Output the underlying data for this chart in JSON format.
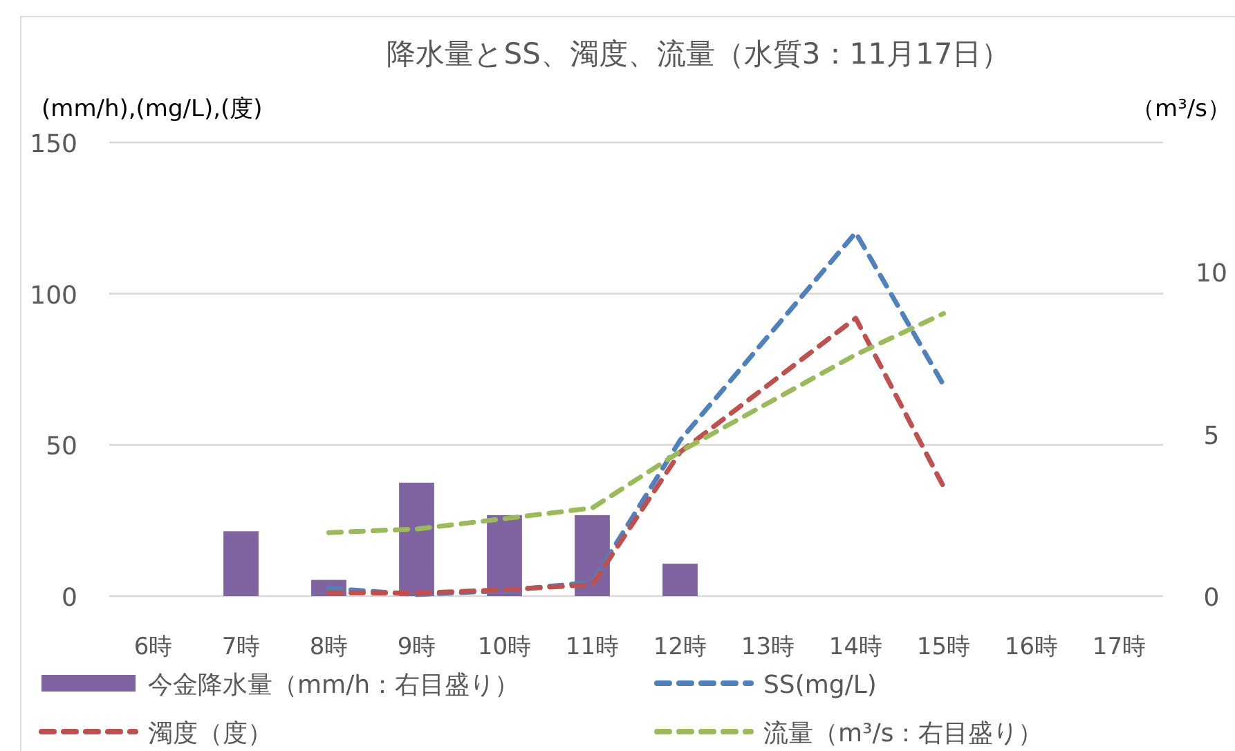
{
  "chart_data": {
    "type": "line",
    "title": "降水量とSS、濁度、流量（水質3：11月17日）",
    "ylabel": "(mm/h),(mg/L),(度)",
    "y2label": "（m³/s）",
    "categories": [
      "6時",
      "7時",
      "8時",
      "9時",
      "10時",
      "11時",
      "12時",
      "13時",
      "14時",
      "15時",
      "16時",
      "17時"
    ],
    "series": [
      {
        "name": "今金降水量（mm/h：右目盛り）",
        "type": "bar",
        "axis": "y2",
        "color": "#8064a2",
        "values": [
          null,
          2.0,
          0.5,
          3.5,
          2.5,
          2.5,
          1.0,
          null,
          null,
          null,
          null,
          null
        ]
      },
      {
        "name": "SS(mg/L)",
        "color": "#4f81bd",
        "line_style": "dashed",
        "values": [
          null,
          null,
          2.6,
          0.5,
          1.8,
          4.6,
          51.5,
          null,
          120.2,
          69.8,
          null,
          null
        ]
      },
      {
        "name": "濁度（度）",
        "color": "#c0504d",
        "line_style": "dashed",
        "values": [
          null,
          null,
          1.1,
          1.0,
          2.1,
          3.8,
          47.6,
          null,
          91.9,
          36.2,
          null,
          null
        ]
      },
      {
        "name": "流量（m³/s：右目盛り）",
        "axis": "y2",
        "color": "#9bbb59",
        "line_style": "dashed",
        "values": [
          null,
          null,
          1.96,
          2.07,
          2.39,
          2.72,
          4.46,
          null,
          7.45,
          8.72,
          null,
          null
        ]
      }
    ],
    "ylim": [
      0,
      150
    ],
    "yticks": [
      0,
      50,
      100,
      150
    ],
    "y2lim": [
      0,
      14
    ],
    "y2ticks": [
      0,
      5,
      10
    ],
    "grid": "y",
    "legend": "bottom",
    "marker": "none"
  }
}
